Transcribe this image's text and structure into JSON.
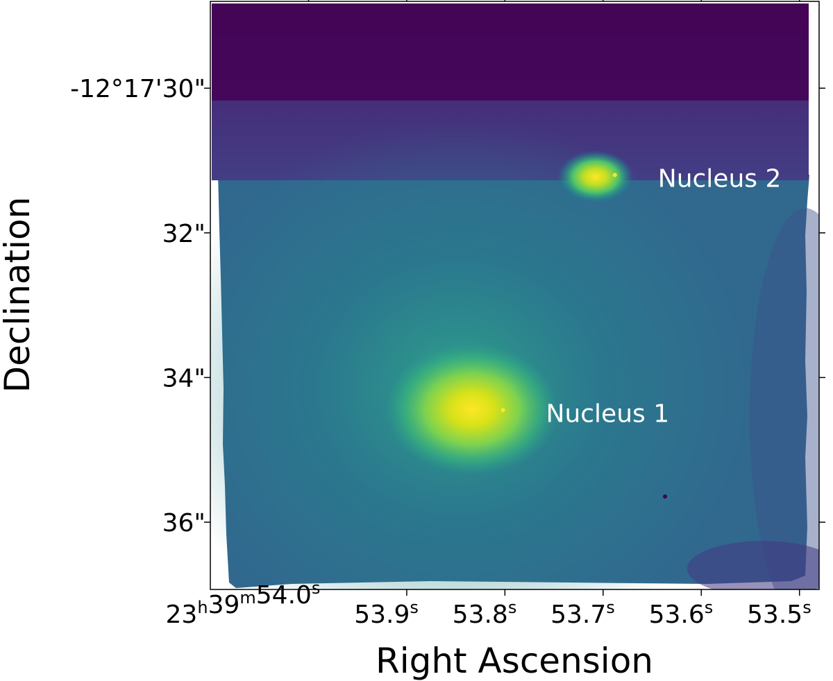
{
  "chart_data": {
    "type": "heatmap",
    "title": "",
    "xlabel": "Right Ascension",
    "ylabel": "Declination",
    "x_ticks": [
      {
        "value": 54.0,
        "parts": [
          [
            "23",
            "h"
          ],
          [
            "39",
            "m"
          ],
          [
            "54.0",
            "s"
          ]
        ]
      },
      {
        "value": 53.9,
        "parts": [
          [
            "53.9",
            "s"
          ]
        ]
      },
      {
        "value": 53.8,
        "parts": [
          [
            "53.8",
            "s"
          ]
        ]
      },
      {
        "value": 53.7,
        "parts": [
          [
            "53.7",
            "s"
          ]
        ]
      },
      {
        "value": 53.6,
        "parts": [
          [
            "53.6",
            "s"
          ]
        ]
      },
      {
        "value": 53.5,
        "parts": [
          [
            "53.5",
            "s"
          ]
        ]
      }
    ],
    "xlim": [
      54.1,
      53.48
    ],
    "y_ticks": [
      {
        "value": 30,
        "label": "-12°17'30\""
      },
      {
        "value": 32,
        "label": "32\""
      },
      {
        "value": 34,
        "label": "34\""
      },
      {
        "value": 36,
        "label": "36\""
      }
    ],
    "ylim": [
      28.8,
      36.93
    ],
    "colormap": "viridis",
    "colors": {
      "low": "#440154",
      "mid": "#21918c",
      "high": "#fde725",
      "label_text": "#ffffff"
    },
    "sources": [
      {
        "name": "Nucleus 1",
        "ra": 53.802,
        "dec": 34.45,
        "peak": 1.0
      },
      {
        "name": "Nucleus 2",
        "ra": 53.688,
        "dec": 31.2,
        "peak": 0.97
      }
    ],
    "grid": false,
    "legend": "none"
  }
}
